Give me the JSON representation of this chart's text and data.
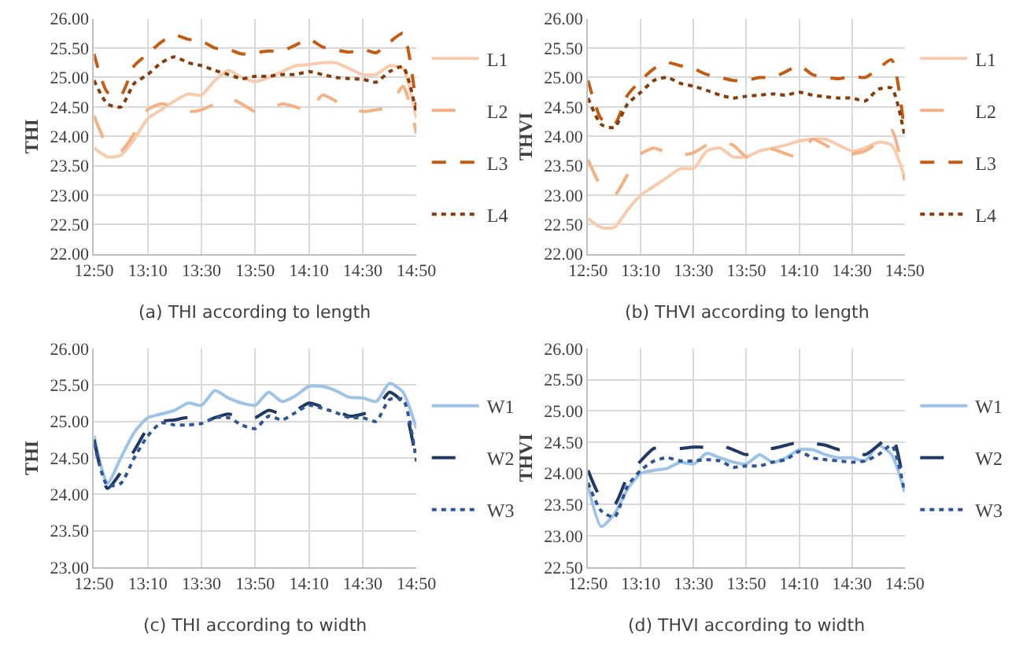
{
  "chart_data": [
    {
      "type": "line",
      "title": "(a) THI according to length",
      "ylabel": "THI",
      "x": [
        12.8333,
        12.9167,
        13.0,
        13.0833,
        13.1667,
        13.25,
        13.3333,
        13.4167,
        13.5,
        13.5833,
        13.6667,
        13.75,
        13.8333,
        13.9167,
        14.0,
        14.0833,
        14.1667,
        14.25,
        14.3333,
        14.4167,
        14.5,
        14.5833,
        14.6667,
        14.75,
        14.8333
      ],
      "xlim": [
        12.8333,
        14.8333
      ],
      "xticks": [
        {
          "value": 12.8333,
          "label": "12:50"
        },
        {
          "value": 13.1667,
          "label": "13:10"
        },
        {
          "value": 13.5,
          "label": "13:30"
        },
        {
          "value": 13.8333,
          "label": "13:50"
        },
        {
          "value": 14.1667,
          "label": "14:10"
        },
        {
          "value": 14.5,
          "label": "14:30"
        },
        {
          "value": 14.8333,
          "label": "14:50"
        }
      ],
      "ylim": [
        22,
        26
      ],
      "yticks": [
        {
          "value": 22,
          "label": "22.00"
        },
        {
          "value": 22.5,
          "label": "22.50"
        },
        {
          "value": 23,
          "label": "23.00"
        },
        {
          "value": 23.5,
          "label": "23.50"
        },
        {
          "value": 24,
          "label": "24.00"
        },
        {
          "value": 24.5,
          "label": "24.50"
        },
        {
          "value": 25,
          "label": "25.00"
        },
        {
          "value": 25.5,
          "label": "25.50"
        },
        {
          "value": 26,
          "label": "26.00"
        }
      ],
      "grid": true,
      "legend": "right",
      "marker": "none",
      "series": [
        {
          "name": "L1",
          "color": "#f8cbad",
          "line_style": "solid",
          "values": [
            23.8,
            23.65,
            23.68,
            23.95,
            24.3,
            24.45,
            24.6,
            24.72,
            24.7,
            24.95,
            25.12,
            25.0,
            24.93,
            25.0,
            25.1,
            25.2,
            25.22,
            25.25,
            25.25,
            25.15,
            25.05,
            25.05,
            25.2,
            25.15,
            24.3
          ]
        },
        {
          "name": "L2",
          "color": "#f4b183",
          "line_style": "longdash",
          "values": [
            24.35,
            23.85,
            23.75,
            24.05,
            24.45,
            24.55,
            24.5,
            24.42,
            24.45,
            24.55,
            24.65,
            24.55,
            24.42,
            24.45,
            24.55,
            24.5,
            24.42,
            24.7,
            24.6,
            24.5,
            24.42,
            24.45,
            24.5,
            24.85,
            24.05
          ]
        },
        {
          "name": "L3",
          "color": "#c55a11",
          "line_style": "dashed",
          "values": [
            25.4,
            24.75,
            24.7,
            25.2,
            25.4,
            25.6,
            25.72,
            25.65,
            25.62,
            25.5,
            25.48,
            25.4,
            25.42,
            25.45,
            25.45,
            25.55,
            25.65,
            25.52,
            25.47,
            25.43,
            25.48,
            25.42,
            25.6,
            25.75,
            24.5
          ]
        },
        {
          "name": "L4",
          "color": "#843c0c",
          "line_style": "dotted",
          "values": [
            24.95,
            24.55,
            24.5,
            24.9,
            25.05,
            25.25,
            25.35,
            25.25,
            25.2,
            25.12,
            25.05,
            24.98,
            25.02,
            25.02,
            25.05,
            25.05,
            25.1,
            25.05,
            25.0,
            24.98,
            24.97,
            24.92,
            25.1,
            25.18,
            24.4
          ]
        }
      ]
    },
    {
      "type": "line",
      "title": "(b) THVI according to length",
      "ylabel": "THVI",
      "x": [
        12.8333,
        12.9167,
        13.0,
        13.0833,
        13.1667,
        13.25,
        13.3333,
        13.4167,
        13.5,
        13.5833,
        13.6667,
        13.75,
        13.8333,
        13.9167,
        14.0,
        14.0833,
        14.1667,
        14.25,
        14.3333,
        14.4167,
        14.5,
        14.5833,
        14.6667,
        14.75,
        14.8333
      ],
      "xlim": [
        12.8333,
        14.8333
      ],
      "xticks": [
        {
          "value": 12.8333,
          "label": "12:50"
        },
        {
          "value": 13.1667,
          "label": "13:10"
        },
        {
          "value": 13.5,
          "label": "13:30"
        },
        {
          "value": 13.8333,
          "label": "13:50"
        },
        {
          "value": 14.1667,
          "label": "14:10"
        },
        {
          "value": 14.5,
          "label": "14:30"
        },
        {
          "value": 14.8333,
          "label": "14:50"
        }
      ],
      "ylim": [
        22,
        26
      ],
      "yticks": [
        {
          "value": 22,
          "label": "22.00"
        },
        {
          "value": 22.5,
          "label": "22.50"
        },
        {
          "value": 23,
          "label": "23.00"
        },
        {
          "value": 23.5,
          "label": "23.50"
        },
        {
          "value": 24,
          "label": "24.00"
        },
        {
          "value": 24.5,
          "label": "24.50"
        },
        {
          "value": 25,
          "label": "25.00"
        },
        {
          "value": 25.5,
          "label": "25.50"
        },
        {
          "value": 26,
          "label": "26.00"
        }
      ],
      "grid": true,
      "legend": "right",
      "marker": "none",
      "series": [
        {
          "name": "L1",
          "color": "#f8cbad",
          "line_style": "solid",
          "values": [
            22.6,
            22.45,
            22.45,
            22.75,
            23.0,
            23.15,
            23.3,
            23.45,
            23.45,
            23.75,
            23.8,
            23.65,
            23.65,
            23.75,
            23.8,
            23.85,
            23.92,
            23.95,
            23.95,
            23.85,
            23.75,
            23.8,
            23.9,
            23.85,
            23.3
          ]
        },
        {
          "name": "L2",
          "color": "#f4b183",
          "line_style": "longdash",
          "values": [
            23.6,
            23.15,
            23.0,
            23.35,
            23.7,
            23.8,
            23.72,
            23.68,
            23.72,
            23.85,
            23.9,
            23.85,
            23.65,
            23.7,
            23.78,
            23.7,
            23.65,
            23.95,
            23.85,
            23.72,
            23.7,
            23.75,
            23.9,
            24.1,
            23.25
          ]
        },
        {
          "name": "L3",
          "color": "#c55a11",
          "line_style": "dashed",
          "values": [
            24.95,
            24.3,
            24.2,
            24.7,
            24.95,
            25.15,
            25.25,
            25.2,
            25.15,
            25.05,
            25.0,
            24.95,
            24.95,
            25.0,
            25.0,
            25.1,
            25.2,
            25.05,
            25.0,
            24.98,
            25.02,
            25.0,
            25.15,
            25.3,
            24.05
          ]
        },
        {
          "name": "L4",
          "color": "#843c0c",
          "line_style": "dotted",
          "values": [
            24.65,
            24.2,
            24.15,
            24.55,
            24.75,
            24.95,
            25.0,
            24.9,
            24.85,
            24.78,
            24.7,
            24.65,
            24.68,
            24.7,
            24.72,
            24.7,
            24.75,
            24.7,
            24.67,
            24.65,
            24.65,
            24.6,
            24.8,
            24.82,
            24.0
          ]
        }
      ]
    },
    {
      "type": "line",
      "title": "(c) THI according to width",
      "ylabel": "THI",
      "x": [
        12.8333,
        12.9167,
        13.0,
        13.0833,
        13.1667,
        13.25,
        13.3333,
        13.4167,
        13.5,
        13.5833,
        13.6667,
        13.75,
        13.8333,
        13.9167,
        14.0,
        14.0833,
        14.1667,
        14.25,
        14.3333,
        14.4167,
        14.5,
        14.5833,
        14.6667,
        14.75,
        14.8333
      ],
      "xlim": [
        12.8333,
        14.8333
      ],
      "xticks": [
        {
          "value": 12.8333,
          "label": "12:50"
        },
        {
          "value": 13.1667,
          "label": "13:10"
        },
        {
          "value": 13.5,
          "label": "13:30"
        },
        {
          "value": 13.8333,
          "label": "13:50"
        },
        {
          "value": 14.1667,
          "label": "14:10"
        },
        {
          "value": 14.5,
          "label": "14:30"
        },
        {
          "value": 14.8333,
          "label": "14:50"
        }
      ],
      "ylim": [
        23,
        26
      ],
      "yticks": [
        {
          "value": 23,
          "label": "23.00"
        },
        {
          "value": 23.5,
          "label": "23.50"
        },
        {
          "value": 24,
          "label": "24.00"
        },
        {
          "value": 24.5,
          "label": "24.50"
        },
        {
          "value": 25,
          "label": "25.00"
        },
        {
          "value": 25.5,
          "label": "25.50"
        },
        {
          "value": 26,
          "label": "26.00"
        }
      ],
      "grid": true,
      "legend": "right",
      "marker": "none",
      "series": [
        {
          "name": "W1",
          "color": "#9dc3e6",
          "line_style": "solid",
          "values": [
            24.8,
            24.15,
            24.5,
            24.85,
            25.05,
            25.1,
            25.15,
            25.25,
            25.22,
            25.42,
            25.32,
            25.25,
            25.22,
            25.4,
            25.27,
            25.35,
            25.48,
            25.48,
            25.42,
            25.33,
            25.32,
            25.27,
            25.52,
            25.4,
            24.9
          ]
        },
        {
          "name": "W2",
          "color": "#1f3864",
          "line_style": "longdash",
          "values": [
            24.75,
            24.08,
            24.3,
            24.6,
            24.9,
            25.0,
            25.02,
            25.05,
            24.98,
            25.05,
            25.1,
            25.05,
            25.05,
            25.15,
            25.1,
            25.15,
            25.25,
            25.2,
            25.15,
            25.07,
            25.1,
            25.17,
            25.4,
            25.25,
            24.45
          ]
        },
        {
          "name": "W3",
          "color": "#2f5597",
          "line_style": "dotted",
          "values": [
            24.7,
            24.12,
            24.15,
            24.5,
            24.8,
            24.98,
            24.95,
            24.95,
            24.97,
            25.05,
            25.05,
            24.95,
            24.9,
            25.07,
            25.02,
            25.12,
            25.22,
            25.18,
            25.12,
            25.05,
            25.05,
            25.0,
            25.3,
            25.3,
            24.45
          ]
        }
      ]
    },
    {
      "type": "line",
      "title": "(d) THVI according to width",
      "ylabel": "THVI",
      "x": [
        12.8333,
        12.9167,
        13.0,
        13.0833,
        13.1667,
        13.25,
        13.3333,
        13.4167,
        13.5,
        13.5833,
        13.6667,
        13.75,
        13.8333,
        13.9167,
        14.0,
        14.0833,
        14.1667,
        14.25,
        14.3333,
        14.4167,
        14.5,
        14.5833,
        14.6667,
        14.75,
        14.8333
      ],
      "xlim": [
        12.8333,
        14.8333
      ],
      "xticks": [
        {
          "value": 12.8333,
          "label": "12:50"
        },
        {
          "value": 13.1667,
          "label": "13:10"
        },
        {
          "value": 13.5,
          "label": "13:30"
        },
        {
          "value": 13.8333,
          "label": "13:50"
        },
        {
          "value": 14.1667,
          "label": "14:10"
        },
        {
          "value": 14.5,
          "label": "14:30"
        },
        {
          "value": 14.8333,
          "label": "14:50"
        }
      ],
      "ylim": [
        22.5,
        26
      ],
      "yticks": [
        {
          "value": 22.5,
          "label": "22.50"
        },
        {
          "value": 23,
          "label": "23.00"
        },
        {
          "value": 23.5,
          "label": "23.50"
        },
        {
          "value": 24,
          "label": "24.00"
        },
        {
          "value": 24.5,
          "label": "24.50"
        },
        {
          "value": 25,
          "label": "25.00"
        },
        {
          "value": 25.5,
          "label": "25.50"
        },
        {
          "value": 26,
          "label": "26.00"
        }
      ],
      "grid": true,
      "legend": "right",
      "marker": "none",
      "series": [
        {
          "name": "W1",
          "color": "#9dc3e6",
          "line_style": "solid",
          "values": [
            23.8,
            23.15,
            23.35,
            23.75,
            24.0,
            24.05,
            24.08,
            24.18,
            24.15,
            24.32,
            24.25,
            24.18,
            24.15,
            24.3,
            24.18,
            24.25,
            24.38,
            24.38,
            24.3,
            24.25,
            24.25,
            24.2,
            24.45,
            24.3,
            23.7
          ]
        },
        {
          "name": "W2",
          "color": "#1f3864",
          "line_style": "longdash",
          "values": [
            24.05,
            23.6,
            23.5,
            23.95,
            24.2,
            24.4,
            24.4,
            24.4,
            24.42,
            24.42,
            24.45,
            24.38,
            24.3,
            24.4,
            24.4,
            24.45,
            24.5,
            24.48,
            24.45,
            24.38,
            24.38,
            24.3,
            24.45,
            24.62,
            23.75
          ]
        },
        {
          "name": "W3",
          "color": "#2f5597",
          "line_style": "dotted",
          "values": [
            23.85,
            23.4,
            23.3,
            23.8,
            24.05,
            24.2,
            24.25,
            24.2,
            24.2,
            24.22,
            24.2,
            24.1,
            24.12,
            24.12,
            24.18,
            24.22,
            24.35,
            24.25,
            24.22,
            24.2,
            24.18,
            24.2,
            24.3,
            24.45,
            23.7
          ]
        }
      ]
    }
  ]
}
